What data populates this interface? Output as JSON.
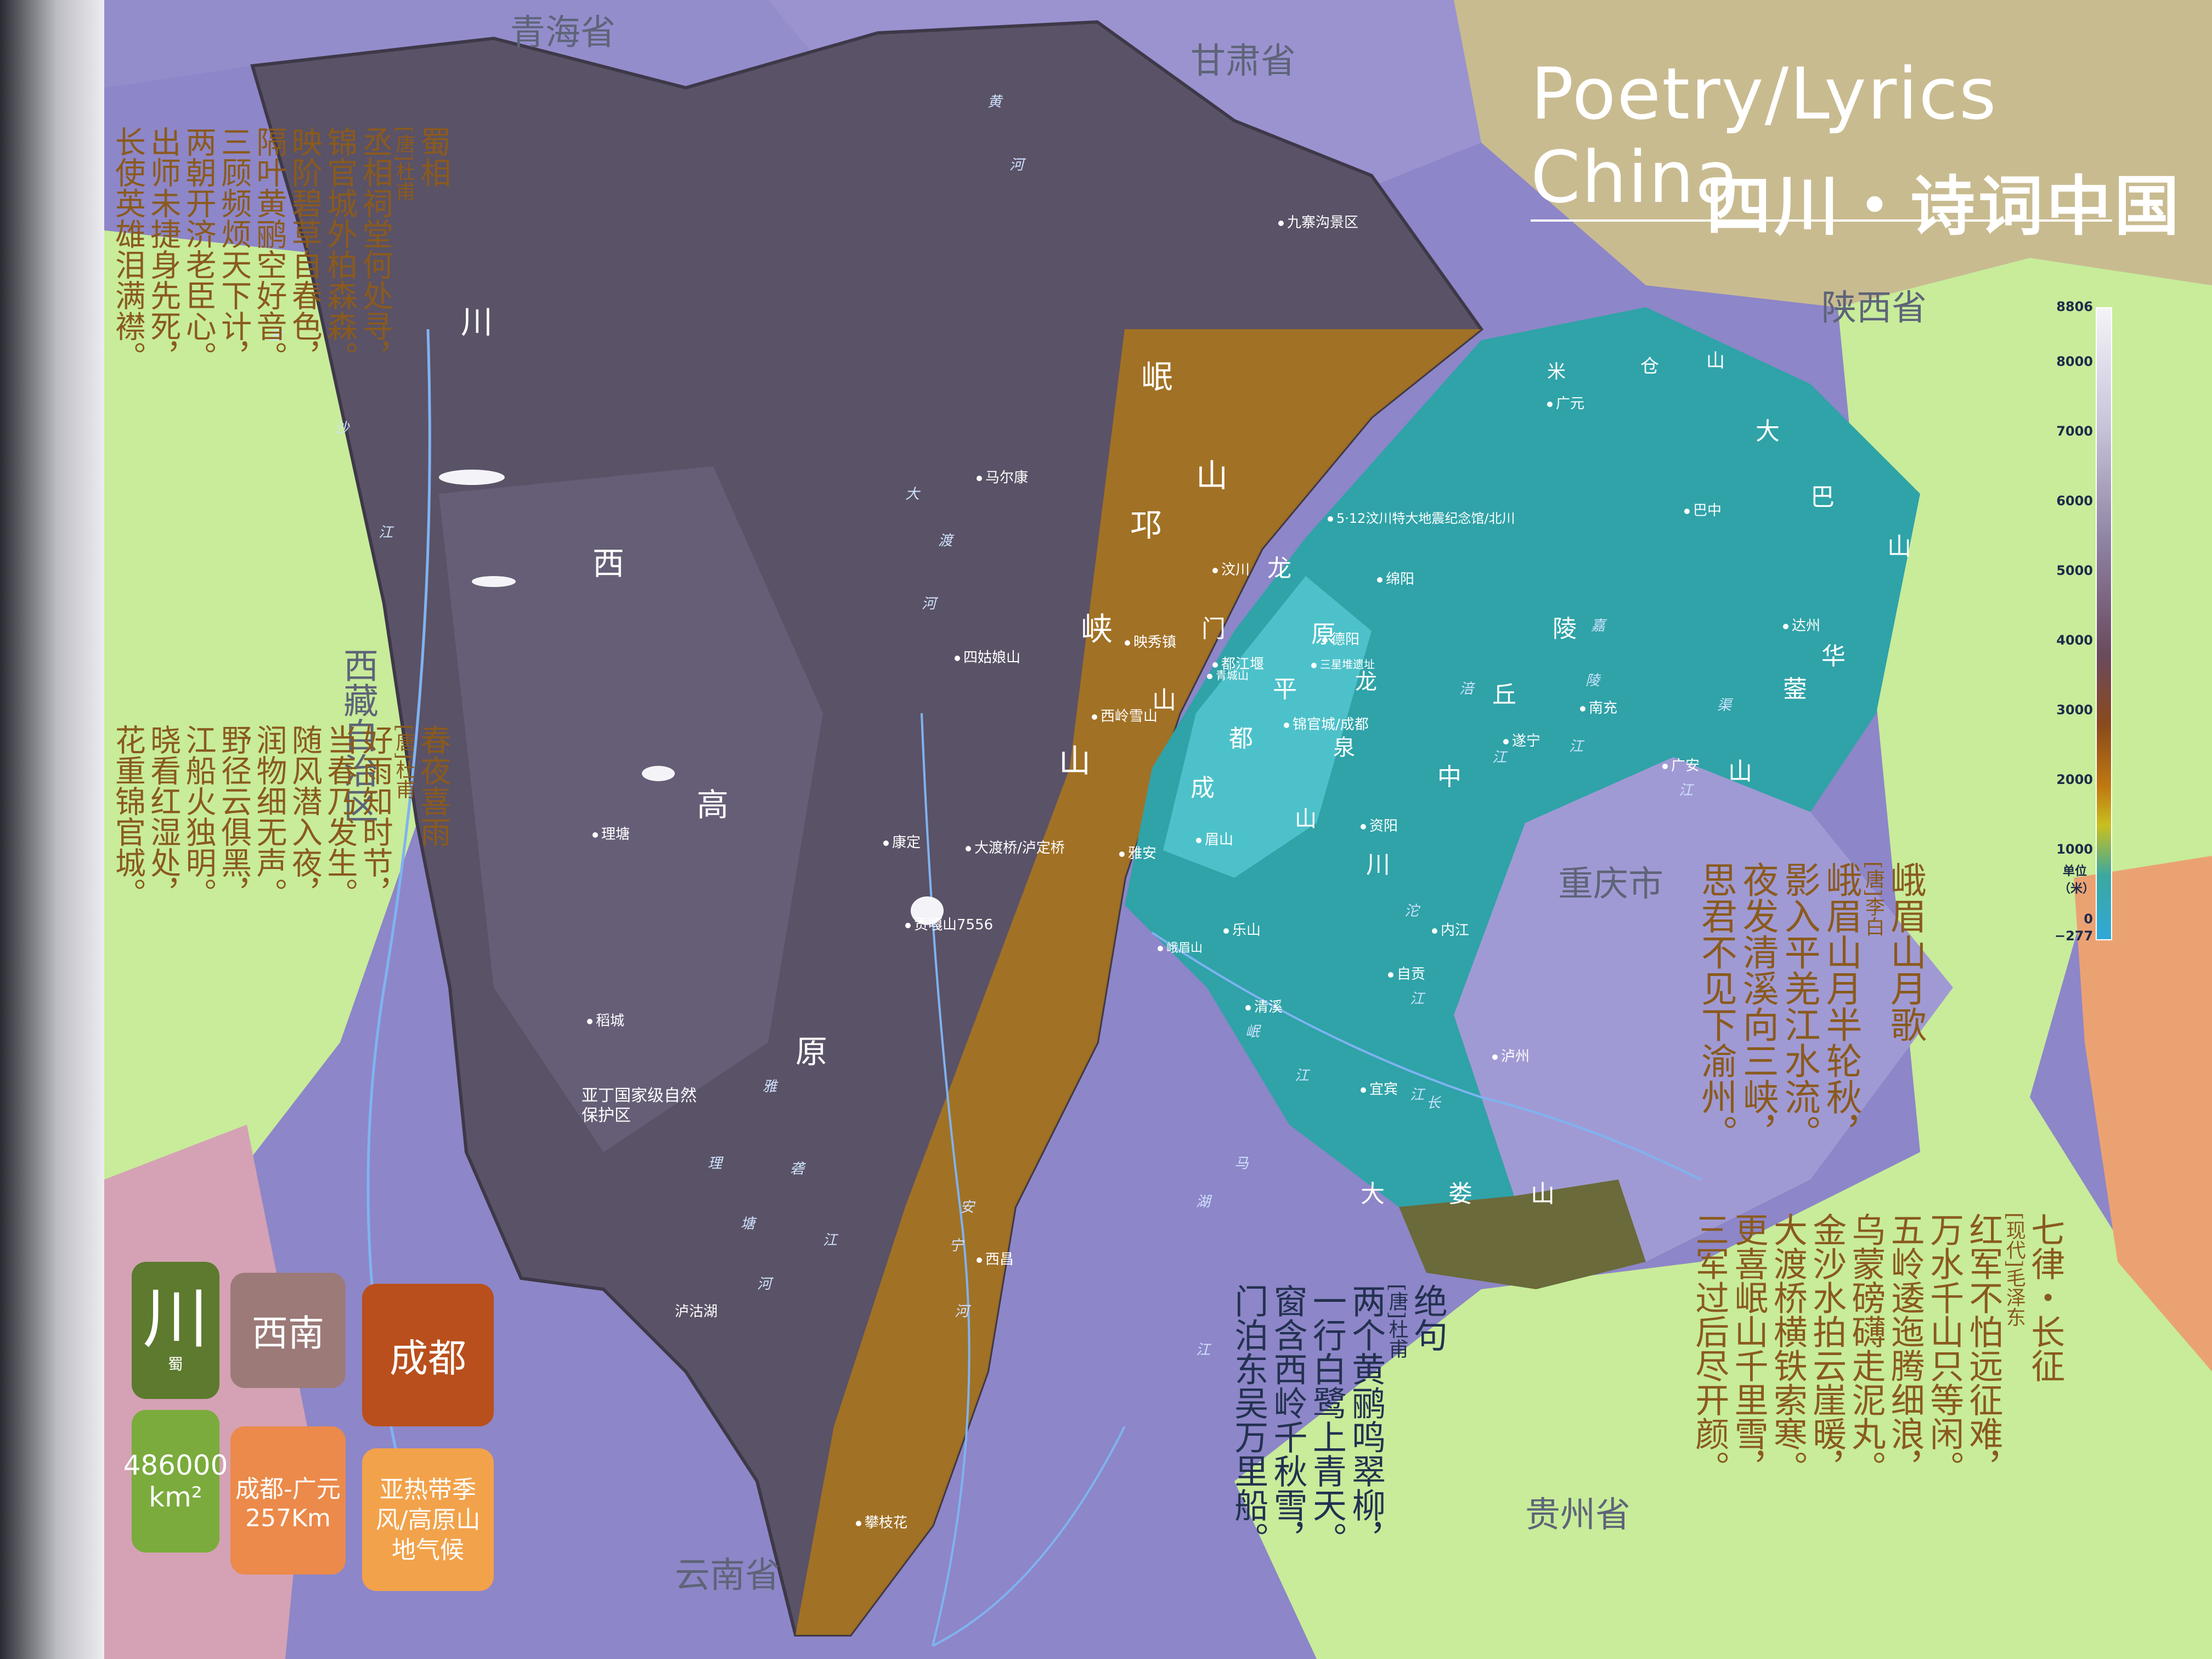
{
  "title": {
    "en": "Poetry/Lyrics China",
    "zh": "四川・诗词中国"
  },
  "provinces": {
    "qinghai": "青海省",
    "gansu": "甘肃省",
    "shaanxi": "陕西省",
    "xizang": "西藏自治区",
    "chongqing": "重庆市",
    "guizhou": "贵州省",
    "yunnan": "云南省"
  },
  "territory_labels": [
    "川",
    "西",
    "高",
    "原",
    "岷",
    "山",
    "邛",
    "峡",
    "山",
    "龙",
    "门",
    "山",
    "成",
    "都",
    "平",
    "原",
    "龙",
    "泉",
    "山",
    "川",
    "中",
    "丘",
    "陵",
    "米",
    "仓",
    "山",
    "大",
    "巴",
    "山",
    "华",
    "蓥",
    "山",
    "大",
    "娄",
    "山"
  ],
  "cities": [
    "九寨沟景区",
    "广元",
    "巴中",
    "达州",
    "南充",
    "遂宁",
    "广安",
    "绵阳",
    "德阳",
    "锦官城/成都",
    "资阳",
    "内江",
    "自贡",
    "泸州",
    "宜宾",
    "乐山",
    "眉山",
    "雅安",
    "马尔康",
    "汶川",
    "映秀镇",
    "都江堰",
    "四姑娘山",
    "西岭雪山",
    "大渡桥/泸定桥",
    "康定",
    "贡嘎山7556",
    "理塘",
    "稻城",
    "西昌",
    "攀枝花",
    "清溪",
    "峨眉山",
    "5·12汶川特大地震纪念馆/北川",
    "三星堆遗址",
    "青城山",
    "泸沽湖",
    "亚丁国家级自然保护区"
  ],
  "rivers": [
    "黄",
    "河",
    "金",
    "沙",
    "江",
    "大",
    "渡",
    "河",
    "雅",
    "砻",
    "江",
    "岷",
    "江",
    "嘉",
    "陵",
    "江",
    "涪",
    "江",
    "沱",
    "江",
    "渠",
    "江",
    "安",
    "宁",
    "河",
    "马",
    "湖",
    "江",
    "长",
    "江",
    "理",
    "塘",
    "河"
  ],
  "poems": {
    "shuxiang": {
      "title": "蜀相",
      "author": "[唐]杜甫",
      "lines": [
        "丞相祠堂何处寻，",
        "锦官城外柏森森。",
        "映阶碧草自春色，",
        "隔叶黄鹂空好音。",
        "三顾频烦天下计，",
        "两朝开济老臣心。",
        "出师未捷身先死，",
        "长使英雄泪满襟。"
      ]
    },
    "chunye": {
      "title": "春夜喜雨",
      "author": "[唐]杜甫",
      "lines": [
        "好雨知时节，",
        "当春乃发生。",
        "随风潜入夜，",
        "润物细无声。",
        "野径云俱黑，",
        "江船火独明。",
        "晓看红湿处，",
        "花重锦官城。"
      ]
    },
    "emei": {
      "title": "峨眉山月歌",
      "author": "[唐]李白",
      "lines": [
        "峨眉山月半轮秋，",
        "影入平羌江水流。",
        "夜发清溪向三峡，",
        "思君不见下渝州。"
      ]
    },
    "changzheng": {
      "title": "七律・长征",
      "author": "[现代]毛泽东",
      "lines": [
        "红军不怕远征难，",
        "万水千山只等闲。",
        "五岭逶迤腾细浪，",
        "乌蒙磅礴走泥丸。",
        "金沙水拍云崖暖，",
        "大渡桥横铁索寒。",
        "更喜岷山千里雪，",
        "三军过后尽开颜。"
      ]
    },
    "jueju": {
      "title": "绝句",
      "author": "[唐]杜甫",
      "lines": [
        "两个黄鹂鸣翠柳，",
        "一行白鹭上青天。",
        "窗含西岭千秋雪，",
        "门泊东吴万里船。"
      ]
    }
  },
  "badges": {
    "short": "川",
    "short_sub": "蜀",
    "region": "西南",
    "capital": "成都",
    "area_value": "486000",
    "area_unit": "km²",
    "route": "成都-广元",
    "route_dist": "257Km",
    "climate": "亚热带季风/高原山地气候"
  },
  "legend": {
    "ticks": [
      "8806",
      "8000",
      "7000",
      "6000",
      "5000",
      "4000",
      "3000",
      "2000",
      "1000",
      "0",
      "−277"
    ],
    "unit": "单位（米）"
  },
  "colors": {
    "highlands": "#5c5468",
    "basin": "#2fa3a8",
    "lowland": "#b8821c",
    "neighbor_purple": "#8d86c8",
    "neighbor_green": "#c8ec9a",
    "neighbor_tan": "#c9bb90",
    "neighbor_orange": "#eba273"
  }
}
